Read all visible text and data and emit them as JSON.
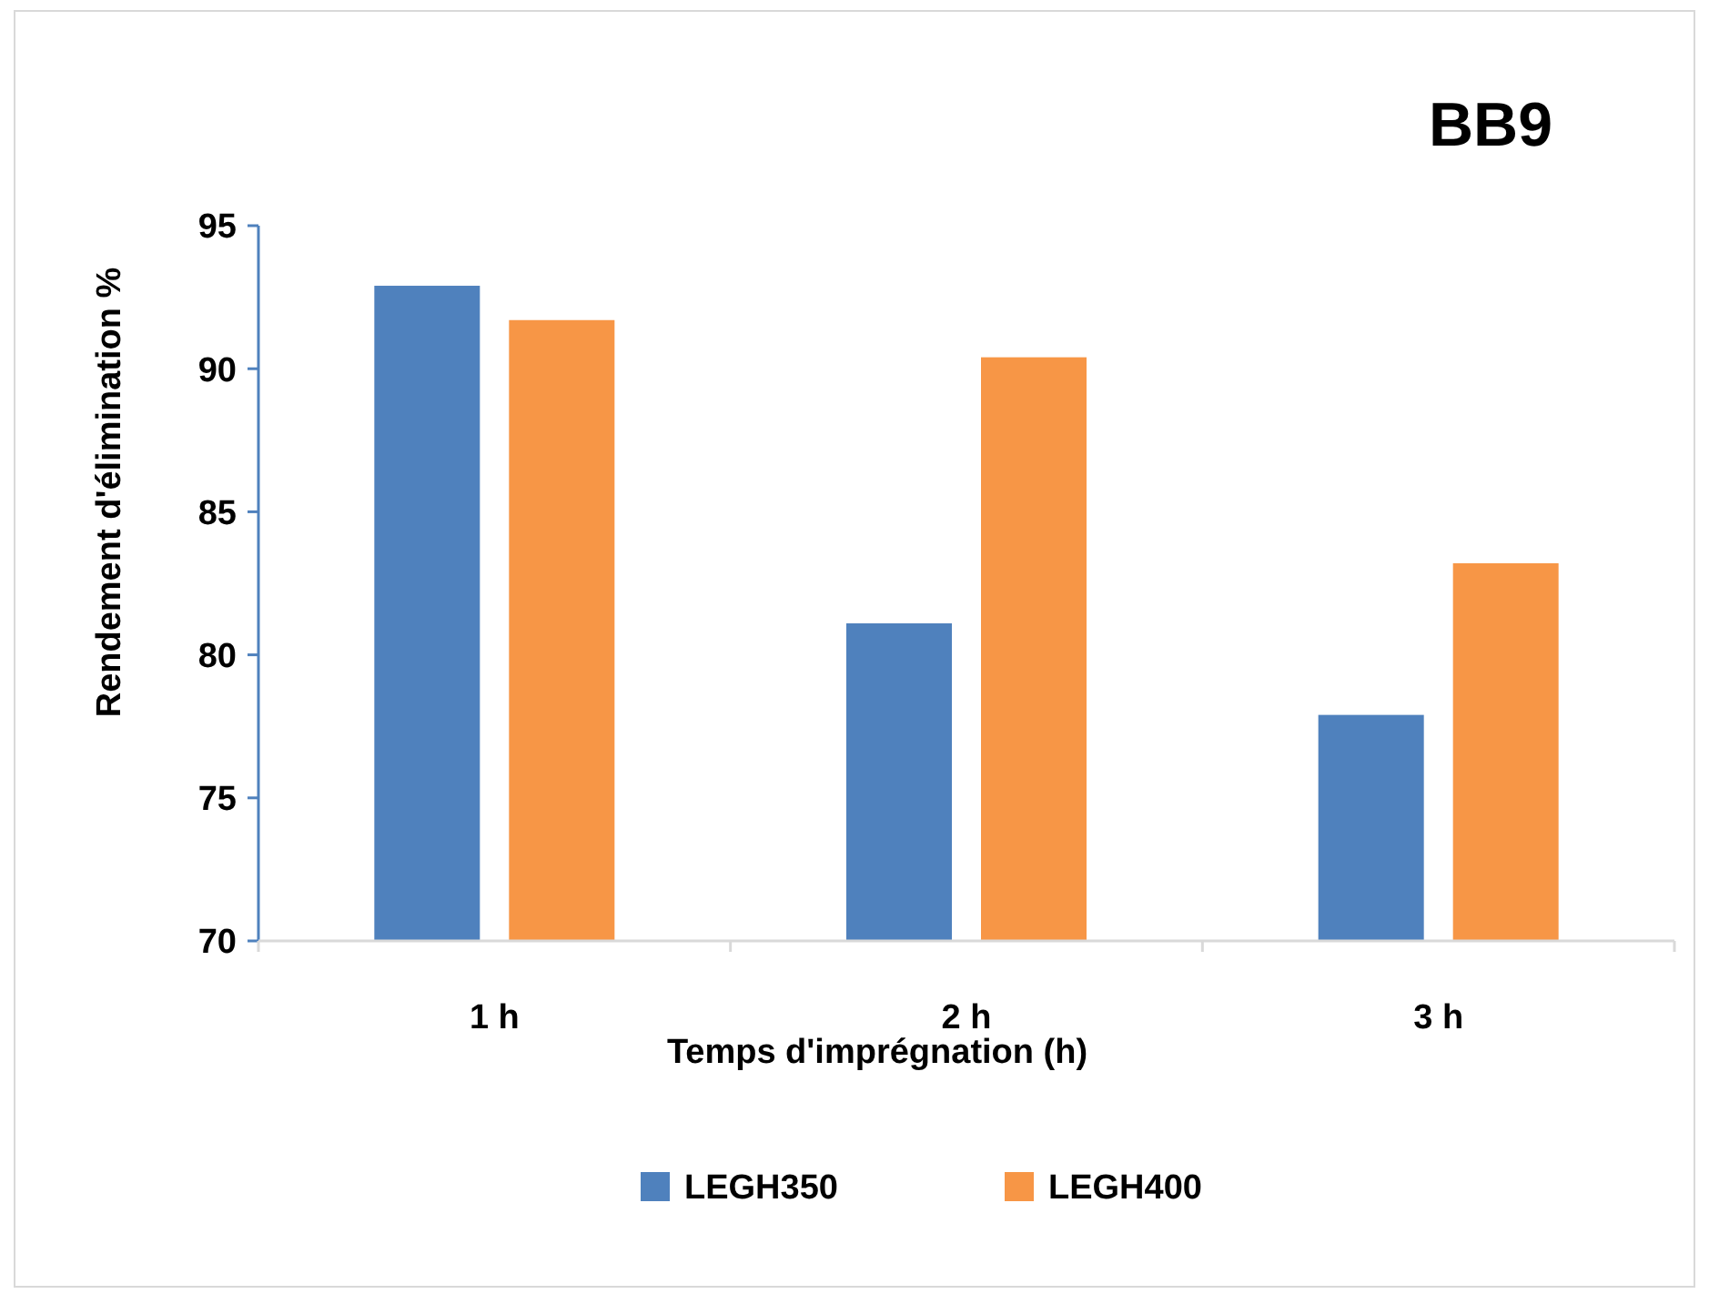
{
  "chart_data": {
    "type": "bar",
    "title": "BB9",
    "xlabel": "Temps d'imprégnation (h)",
    "ylabel": "Rendement d'élimination %",
    "categories": [
      "1 h",
      "2 h",
      "3 h"
    ],
    "series": [
      {
        "name": "LEGH350",
        "color": "#4f81bd",
        "values": [
          92.9,
          81.1,
          77.9
        ]
      },
      {
        "name": "LEGH400",
        "color": "#f79646",
        "values": [
          91.7,
          90.4,
          83.2
        ]
      }
    ],
    "ylim": [
      70,
      95
    ],
    "yticks": [
      70,
      75,
      80,
      85,
      90,
      95
    ],
    "grid": false,
    "legend": "bottom"
  }
}
